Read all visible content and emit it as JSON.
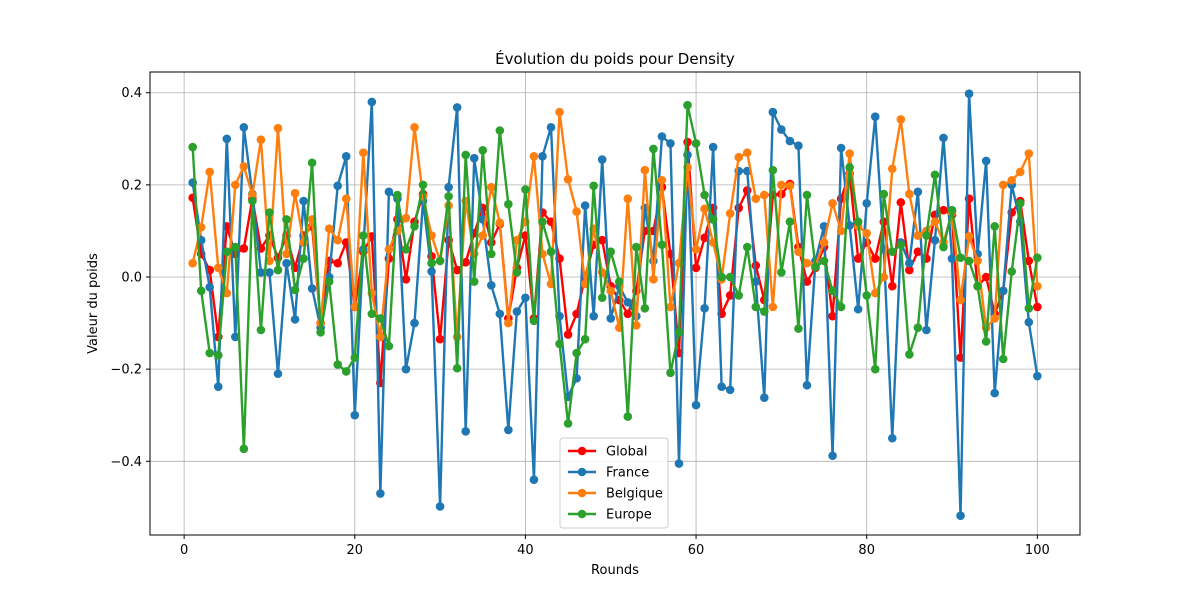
{
  "chart_data": {
    "type": "line",
    "title": "Évolution du poids pour Density",
    "xlabel": "Rounds",
    "ylabel": "Valeur du poids",
    "xlim": [
      -4,
      105
    ],
    "ylim": [
      -0.56,
      0.445
    ],
    "xticks": [
      0,
      20,
      40,
      60,
      80,
      100
    ],
    "yticks": [
      -0.4,
      -0.2,
      0.0,
      0.2,
      0.4
    ],
    "xtick_labels": [
      "0",
      "20",
      "40",
      "60",
      "80",
      "100"
    ],
    "ytick_labels": [
      "−0.4",
      "−0.2",
      "0.0",
      "0.2",
      "0.4"
    ],
    "grid": true,
    "legend_position": "bottom-center",
    "x": [
      1,
      2,
      3,
      4,
      5,
      6,
      7,
      8,
      9,
      10,
      11,
      12,
      13,
      14,
      15,
      16,
      17,
      18,
      19,
      20,
      21,
      22,
      23,
      24,
      25,
      26,
      27,
      28,
      29,
      30,
      31,
      32,
      33,
      34,
      35,
      36,
      37,
      38,
      39,
      40,
      41,
      42,
      43,
      44,
      45,
      46,
      47,
      48,
      49,
      50,
      51,
      52,
      53,
      54,
      55,
      56,
      57,
      58,
      59,
      60,
      61,
      62,
      63,
      64,
      65,
      66,
      67,
      68,
      69,
      70,
      71,
      72,
      73,
      74,
      75,
      76,
      77,
      78,
      79,
      80,
      81,
      82,
      83,
      84,
      85,
      86,
      87,
      88,
      89,
      90,
      91,
      92,
      93,
      94,
      95,
      96,
      97,
      98,
      99,
      100
    ],
    "series": [
      {
        "name": "Global",
        "color": "#ff0000",
        "values": [
          0.172,
          0.05,
          0.015,
          -0.13,
          0.11,
          0.05,
          0.062,
          0.17,
          0.062,
          0.09,
          0.042,
          0.09,
          0.02,
          0.09,
          0.11,
          -0.1,
          0.035,
          0.03,
          0.075,
          -0.065,
          0.055,
          0.088,
          -0.23,
          0.04,
          0.125,
          -0.005,
          0.12,
          0.18,
          0.045,
          -0.135,
          0.08,
          0.015,
          0.032,
          0.095,
          0.15,
          0.075,
          0.115,
          -0.09,
          0.02,
          0.09,
          -0.09,
          0.14,
          0.12,
          0.04,
          -0.125,
          -0.08,
          0.0,
          0.07,
          0.08,
          -0.02,
          -0.05,
          -0.08,
          -0.03,
          0.1,
          0.1,
          0.195,
          0.05,
          -0.165,
          0.293,
          0.02,
          0.085,
          0.15,
          -0.08,
          -0.04,
          0.15,
          0.188,
          0.025,
          -0.05,
          0.178,
          0.18,
          0.202,
          0.065,
          -0.01,
          0.02,
          0.065,
          -0.085,
          0.17,
          0.225,
          0.04,
          0.075,
          0.04,
          0.12,
          -0.02,
          0.162,
          0.015,
          0.055,
          0.04,
          0.135,
          0.145,
          0.135,
          -0.175,
          0.17,
          -0.02,
          0.0,
          -0.08,
          -0.03,
          0.14,
          0.165,
          0.035,
          -0.065
        ]
      },
      {
        "name": "France",
        "color": "#1f77b4",
        "values": [
          0.205,
          0.08,
          -0.022,
          -0.238,
          0.3,
          -0.13,
          0.325,
          0.18,
          0.01,
          0.01,
          -0.21,
          0.03,
          -0.092,
          0.165,
          -0.025,
          -0.11,
          0.0,
          0.198,
          0.262,
          -0.3,
          0.06,
          0.38,
          -0.47,
          0.185,
          0.17,
          -0.2,
          -0.1,
          0.165,
          0.012,
          -0.498,
          0.195,
          0.368,
          -0.335,
          0.258,
          0.125,
          -0.018,
          -0.08,
          -0.332,
          -0.075,
          -0.045,
          -0.44,
          0.262,
          0.325,
          -0.085,
          -0.26,
          -0.22,
          0.155,
          -0.085,
          0.255,
          -0.09,
          -0.02,
          -0.055,
          -0.085,
          0.15,
          0.035,
          0.305,
          0.29,
          -0.405,
          0.265,
          -0.278,
          -0.068,
          0.282,
          -0.238,
          -0.245,
          0.23,
          0.23,
          -0.01,
          -0.262,
          0.358,
          0.32,
          0.295,
          0.285,
          -0.235,
          0.035,
          0.11,
          -0.388,
          0.28,
          0.112,
          -0.07,
          0.16,
          0.348,
          0.06,
          -0.35,
          0.075,
          0.03,
          0.185,
          -0.115,
          0.08,
          0.302,
          0.04,
          -0.518,
          0.398,
          0.05,
          0.252,
          -0.252,
          -0.03,
          0.2,
          0.12,
          -0.098,
          -0.215
        ]
      },
      {
        "name": "Belgique",
        "color": "#ff7f0e",
        "values": [
          0.03,
          0.108,
          0.228,
          0.02,
          -0.035,
          0.2,
          0.24,
          0.178,
          0.298,
          0.035,
          0.323,
          0.05,
          0.182,
          0.075,
          0.125,
          -0.1,
          0.105,
          0.08,
          0.17,
          -0.065,
          0.27,
          -0.035,
          -0.13,
          0.06,
          0.1,
          0.128,
          0.325,
          0.175,
          0.09,
          0.035,
          0.155,
          -0.13,
          0.165,
          0.05,
          0.09,
          0.195,
          0.118,
          -0.1,
          0.08,
          0.12,
          0.262,
          0.05,
          -0.015,
          0.358,
          0.212,
          0.142,
          -0.015,
          0.105,
          0.01,
          -0.03,
          -0.11,
          0.17,
          -0.105,
          0.232,
          -0.005,
          0.21,
          -0.065,
          0.03,
          0.238,
          0.06,
          0.148,
          0.075,
          -0.005,
          0.138,
          0.26,
          0.27,
          0.17,
          0.178,
          -0.065,
          0.2,
          0.198,
          0.055,
          0.03,
          0.025,
          0.075,
          0.16,
          0.1,
          0.268,
          0.11,
          0.095,
          -0.035,
          0.0,
          0.235,
          0.342,
          0.18,
          0.09,
          0.1,
          0.12,
          0.075,
          0.14,
          -0.05,
          0.088,
          0.035,
          -0.11,
          -0.09,
          0.2,
          0.21,
          0.228,
          0.268,
          -0.02
        ]
      },
      {
        "name": "Europe",
        "color": "#2ca02c",
        "values": [
          0.282,
          -0.03,
          -0.165,
          -0.17,
          0.055,
          0.065,
          -0.373,
          0.165,
          -0.115,
          0.14,
          0.015,
          0.125,
          -0.028,
          0.04,
          0.248,
          -0.12,
          -0.01,
          -0.19,
          -0.205,
          -0.175,
          0.09,
          -0.08,
          -0.09,
          -0.15,
          0.178,
          0.06,
          0.11,
          0.2,
          0.03,
          0.035,
          0.175,
          -0.198,
          0.265,
          -0.01,
          0.275,
          0.05,
          0.318,
          0.158,
          0.01,
          0.19,
          -0.095,
          0.12,
          0.055,
          -0.145,
          -0.318,
          -0.165,
          -0.135,
          0.198,
          -0.045,
          0.055,
          -0.01,
          -0.303,
          0.065,
          -0.068,
          0.278,
          0.07,
          -0.208,
          -0.12,
          0.373,
          0.29,
          0.178,
          0.125,
          0.0,
          0.0,
          -0.04,
          0.065,
          -0.065,
          -0.075,
          0.232,
          0.01,
          0.12,
          -0.112,
          0.178,
          0.022,
          0.035,
          -0.03,
          -0.065,
          0.238,
          0.12,
          -0.04,
          -0.2,
          0.18,
          0.055,
          0.07,
          -0.168,
          -0.11,
          0.09,
          0.222,
          0.065,
          0.145,
          0.042,
          0.035,
          -0.02,
          -0.14,
          0.11,
          -0.178,
          0.012,
          0.16,
          -0.068,
          0.042
        ]
      }
    ]
  }
}
